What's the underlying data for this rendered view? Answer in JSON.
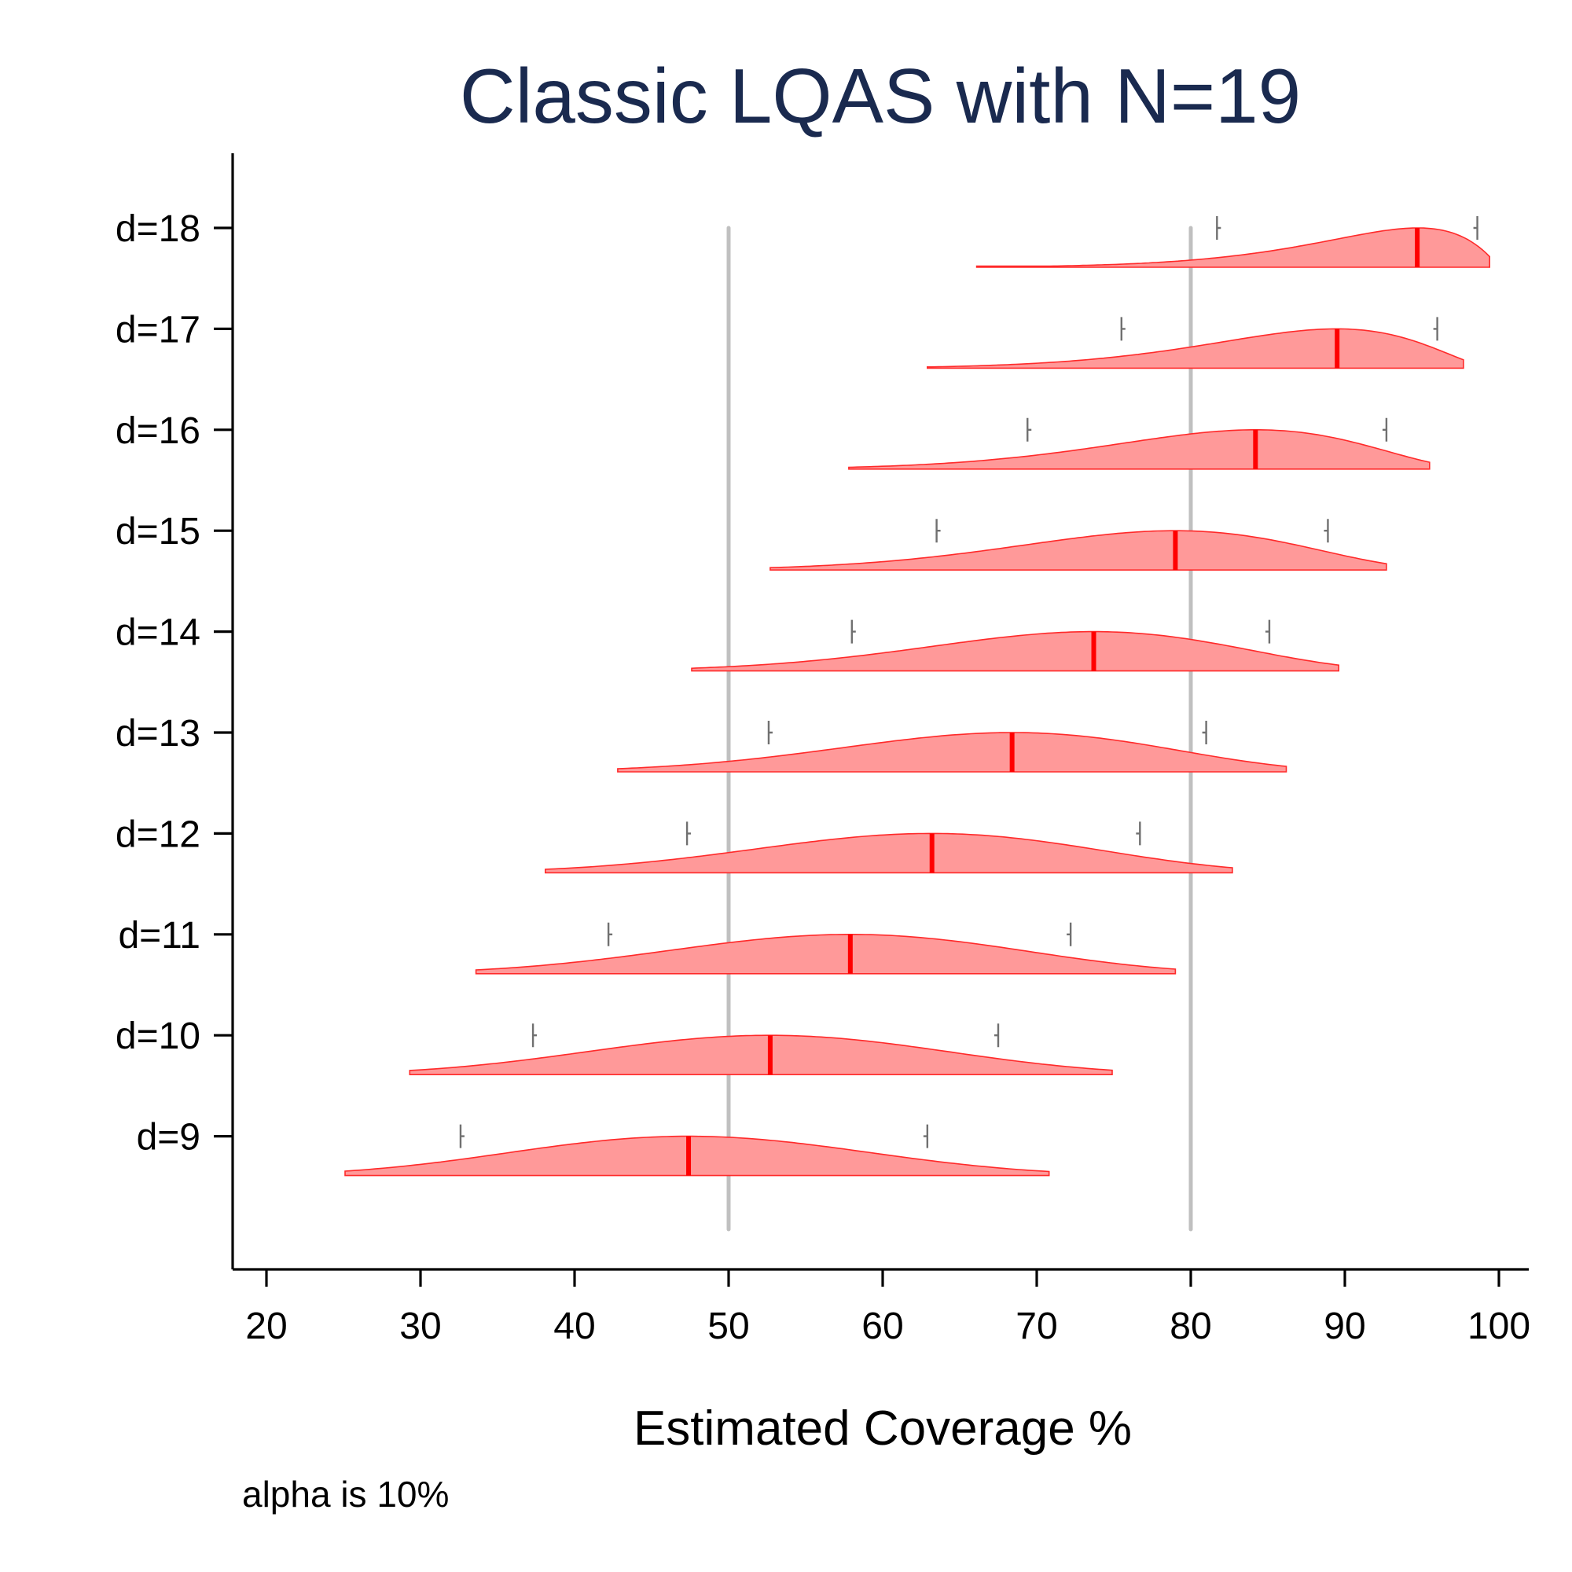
{
  "chart_data": {
    "type": "ridgeline",
    "title": "Classic LQAS with N=19",
    "xlabel": "Estimated Coverage %",
    "ylabel": "",
    "note": "alpha is 10%",
    "xlim": [
      18,
      102
    ],
    "xticks": [
      20,
      30,
      40,
      50,
      60,
      70,
      80,
      90,
      100
    ],
    "reference_lines": [
      50,
      80
    ],
    "colors": {
      "fill": "#ff9999",
      "outline": "#ff2a2a",
      "median": "#ff0000",
      "interval": "#707070",
      "reference": "#c0c0c0",
      "title": "#1a2a4f"
    },
    "series": [
      {
        "name": "d=9",
        "d": 9,
        "min": 25.1,
        "max": 70.8,
        "median": 47.4,
        "ci": [
          32.6,
          62.9
        ]
      },
      {
        "name": "d=10",
        "d": 10,
        "min": 29.3,
        "max": 74.9,
        "median": 52.7,
        "ci": [
          37.3,
          67.5
        ]
      },
      {
        "name": "d=11",
        "d": 11,
        "min": 33.6,
        "max": 79.0,
        "median": 57.9,
        "ci": [
          42.2,
          72.2
        ]
      },
      {
        "name": "d=12",
        "d": 12,
        "min": 38.1,
        "max": 82.7,
        "median": 63.2,
        "ci": [
          47.3,
          76.7
        ]
      },
      {
        "name": "d=13",
        "d": 13,
        "min": 42.8,
        "max": 86.2,
        "median": 68.4,
        "ci": [
          52.6,
          81.0
        ]
      },
      {
        "name": "d=14",
        "d": 14,
        "min": 47.6,
        "max": 89.6,
        "median": 73.7,
        "ci": [
          58.0,
          85.1
        ]
      },
      {
        "name": "d=15",
        "d": 15,
        "min": 52.7,
        "max": 92.7,
        "median": 79.0,
        "ci": [
          63.5,
          88.9
        ]
      },
      {
        "name": "d=16",
        "d": 16,
        "min": 57.8,
        "max": 95.5,
        "median": 84.2,
        "ci": [
          69.4,
          92.7
        ]
      },
      {
        "name": "d=17",
        "d": 17,
        "min": 62.9,
        "max": 97.7,
        "median": 89.5,
        "ci": [
          75.5,
          96.0
        ]
      },
      {
        "name": "d=18",
        "d": 18,
        "min": 66.1,
        "max": 99.4,
        "median": 94.7,
        "ci": [
          81.7,
          98.6
        ]
      }
    ]
  }
}
